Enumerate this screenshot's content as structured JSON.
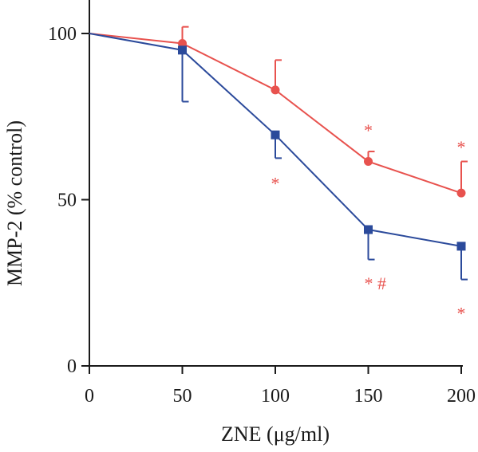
{
  "chart_data": {
    "type": "line",
    "xlabel": "ZNE (μg/ml)",
    "ylabel": "MMP-2 (% control)",
    "x": [
      0,
      50,
      100,
      150,
      200
    ],
    "x_ticks": [
      "0",
      "50",
      "100",
      "150",
      "200"
    ],
    "y_ticks": [
      "0",
      "50",
      "100"
    ],
    "xlim": [
      0,
      200
    ],
    "ylim": [
      0,
      100
    ],
    "grid": false,
    "series": [
      {
        "color": "#e8524e",
        "marker": "circle",
        "values": [
          100,
          97,
          83,
          61.5,
          52
        ],
        "error_up": [
          0,
          5,
          9,
          3,
          9.5
        ],
        "error_down": [
          0,
          0,
          0,
          0,
          0
        ]
      },
      {
        "color": "#2b4a9b",
        "marker": "square",
        "values": [
          100,
          95,
          69.5,
          41,
          36
        ],
        "error_up": [
          0,
          0,
          0,
          0,
          0
        ],
        "error_down": [
          0,
          15.5,
          7,
          9,
          10
        ]
      }
    ],
    "annotations": [
      {
        "text": "*",
        "x": 150,
        "y": 71,
        "color": "#e8524e"
      },
      {
        "text": "*",
        "x": 200,
        "y": 66,
        "color": "#e8524e"
      },
      {
        "text": "*",
        "x": 100,
        "y": 55,
        "color": "#e8524e"
      },
      {
        "text": "* #",
        "x": 150,
        "y": 25,
        "color": "#e8524e"
      },
      {
        "text": "*",
        "x": 200,
        "y": 16,
        "color": "#e8524e"
      }
    ]
  }
}
